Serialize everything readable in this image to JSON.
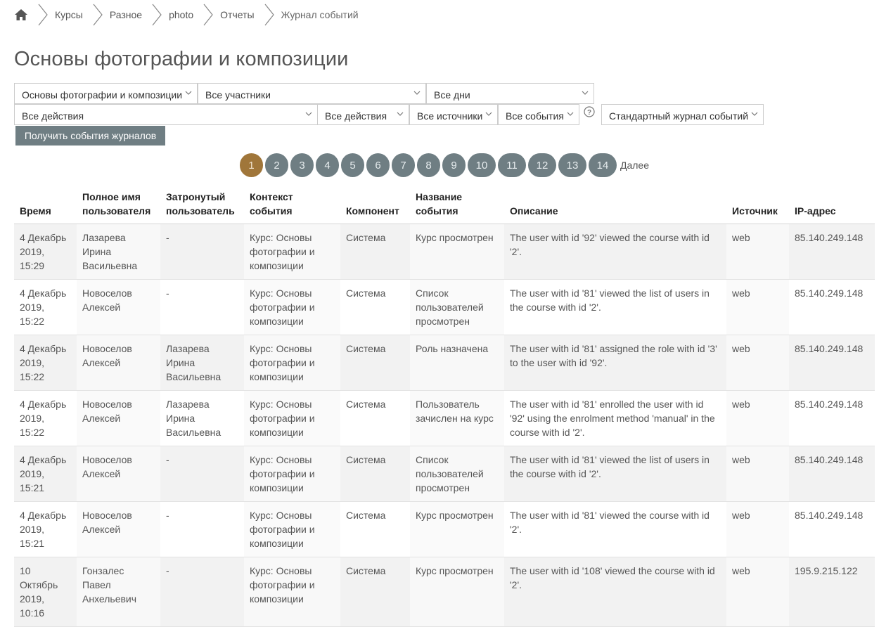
{
  "breadcrumb": {
    "home_icon": "home-icon",
    "items": [
      "Курсы",
      "Разное",
      "photo",
      "Отчеты",
      "Журнал событий"
    ]
  },
  "page_title": "Основы фотографии и композиции",
  "filters": {
    "course": "Основы фотографии и композиции",
    "participants": "Все участники",
    "days": "Все дни",
    "activities": "Все действия",
    "actions": "Все действия",
    "sources": "Все источники",
    "events": "Все события",
    "help_icon": "help-circle-icon",
    "log_type": "Стандартный журнал событий",
    "submit_label": "Получить события журналов"
  },
  "pagination": {
    "pages": [
      "1",
      "2",
      "3",
      "4",
      "5",
      "6",
      "7",
      "8",
      "9",
      "10",
      "11",
      "12",
      "13",
      "14"
    ],
    "current": "1",
    "next_label": "Далее",
    "colors": {
      "active": "#a0763a",
      "inactive": "#6f7e83"
    }
  },
  "table": {
    "headers": {
      "time": "Время",
      "fullname": "Полное имя пользователя",
      "affected": "Затронутый пользователь",
      "context": "Контекст события",
      "component": "Компонент",
      "event": "Название события",
      "description": "Описание",
      "origin": "Источник",
      "ip": "IP-адрес"
    },
    "rows": [
      {
        "time": "4 Декабрь 2019, 15:29",
        "fullname": "Лазарева Ирина Васильевна",
        "affected": "-",
        "context": "Курс: Основы фотографии и композиции",
        "component": "Система",
        "event": "Курс просмотрен",
        "description": "The user with id '92' viewed the course with id '2'.",
        "origin": "web",
        "ip": "85.140.249.148"
      },
      {
        "time": "4 Декабрь 2019, 15:22",
        "fullname": "Новоселов Алексей",
        "affected": "-",
        "context": "Курс: Основы фотографии и композиции",
        "component": "Система",
        "event": "Список пользователей просмотрен",
        "description": "The user with id '81' viewed the list of users in the course with id '2'.",
        "origin": "web",
        "ip": "85.140.249.148"
      },
      {
        "time": "4 Декабрь 2019, 15:22",
        "fullname": "Новоселов Алексей",
        "affected": "Лазарева Ирина Васильевна",
        "context": "Курс: Основы фотографии и композиции",
        "component": "Система",
        "event": "Роль назначена",
        "description": "The user with id '81' assigned the role with id '3' to the user with id '92'.",
        "origin": "web",
        "ip": "85.140.249.148"
      },
      {
        "time": "4 Декабрь 2019, 15:22",
        "fullname": "Новоселов Алексей",
        "affected": "Лазарева Ирина Васильевна",
        "context": "Курс: Основы фотографии и композиции",
        "component": "Система",
        "event": "Пользователь зачислен на курс",
        "description": "The user with id '81' enrolled the user with id '92' using the enrolment method 'manual' in the course with id '2'.",
        "origin": "web",
        "ip": "85.140.249.148"
      },
      {
        "time": "4 Декабрь 2019, 15:21",
        "fullname": "Новоселов Алексей",
        "affected": "-",
        "context": "Курс: Основы фотографии и композиции",
        "component": "Система",
        "event": "Список пользователей просмотрен",
        "description": "The user with id '81' viewed the list of users in the course with id '2'.",
        "origin": "web",
        "ip": "85.140.249.148"
      },
      {
        "time": "4 Декабрь 2019, 15:21",
        "fullname": "Новоселов Алексей",
        "affected": "-",
        "context": "Курс: Основы фотографии и композиции",
        "component": "Система",
        "event": "Курс просмотрен",
        "description": "The user with id '81' viewed the course with id '2'.",
        "origin": "web",
        "ip": "85.140.249.148"
      },
      {
        "time": "10 Октябрь 2019, 10:16",
        "fullname": "Гонзалес Павел Анхельевич",
        "affected": "-",
        "context": "Курс: Основы фотографии и композиции",
        "component": "Система",
        "event": "Курс просмотрен",
        "description": "The user with id '108' viewed the course with id '2'.",
        "origin": "web",
        "ip": "195.9.215.122"
      }
    ]
  }
}
